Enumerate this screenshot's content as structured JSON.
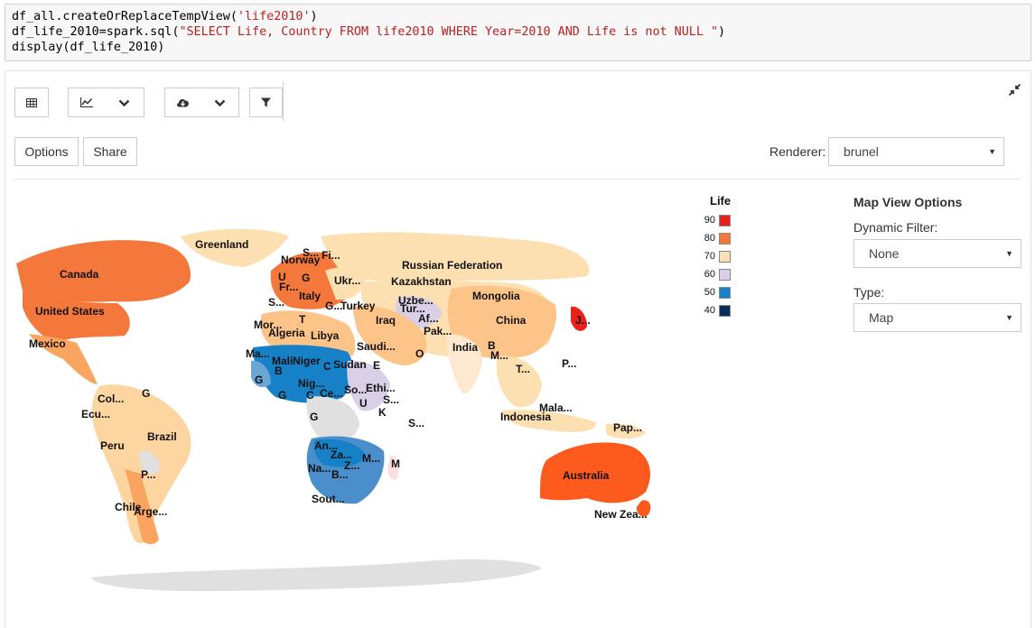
{
  "code": {
    "line1_a": "df_all.createOrReplaceTempView(",
    "line1_str": "'life2010'",
    "line1_b": ")",
    "line2_a": "df_life_2010=spark.sql(",
    "line2_str": "\"SELECT Life, Country FROM life2010 WHERE Year=2010 AND Life is not NULL \"",
    "line2_b": ")",
    "line3": "display(df_life_2010)"
  },
  "toolbar": {
    "table_icon": "table-icon",
    "chart_icon": "line-chart-icon",
    "download_icon": "cloud-download-icon",
    "filter_icon": "filter-icon",
    "collapse_icon": "collapse-arrows-icon"
  },
  "buttons": {
    "options": "Options",
    "share": "Share"
  },
  "renderer": {
    "label": "Renderer:",
    "value": "brunel"
  },
  "legend": {
    "title": "Life",
    "entries": [
      {
        "label": "90",
        "color": "#e8211b"
      },
      {
        "label": "80",
        "color": "#f4773b"
      },
      {
        "label": "70",
        "color": "#fde0b1"
      },
      {
        "label": "60",
        "color": "#d9cfe6"
      },
      {
        "label": "50",
        "color": "#1681c7"
      },
      {
        "label": "40",
        "color": "#0b2d5b"
      }
    ]
  },
  "map_options": {
    "title": "Map View Options",
    "filter_label": "Dynamic Filter:",
    "filter_value": "None",
    "type_label": "Type:",
    "type_value": "Map"
  },
  "map_labels": {
    "greenland": "Greenland",
    "canada": "Canada",
    "usa": "United States",
    "mexico": "Mexico",
    "colombia": "Col...",
    "ecuador": "Ecu...",
    "peru": "Peru",
    "brazil": "Brazil",
    "paraguay": "P...",
    "chile": "Chile",
    "argentina": "Arge...",
    "guyana": "G",
    "norway": "Norway",
    "sweden": "S...",
    "finland": "Fi...",
    "uk": "U",
    "germany": "G",
    "france": "Fr...",
    "spain": "S...",
    "italy": "Italy",
    "greece": "G...",
    "ukraine": "Ukr...",
    "turkey": "Turkey",
    "russia": "Russian Federation",
    "kazakhstan": "Kazakhstan",
    "uzbekistan": "Uzbe...",
    "turkmenistan": "Tur...",
    "afghanistan": "Af...",
    "pakistan": "Pak...",
    "iraq": "Iraq",
    "mongolia": "Mongolia",
    "china": "China",
    "japan": "J...",
    "india": "India",
    "bangladesh": "B",
    "myanmar": "M...",
    "thailand": "T...",
    "philippines": "P...",
    "malaysia": "Mala...",
    "indonesia": "Indonesia",
    "png": "Pap...",
    "australia": "Australia",
    "nz": "New Zea...",
    "morocco": "Mor...",
    "algeria": "Algeria",
    "tunisia": "T",
    "libya": "Libya",
    "egypt": "E",
    "sudan": "Sudan",
    "chad": "C",
    "niger": "Niger",
    "mali": "Mali",
    "mauritania": "Ma...",
    "burkina": "B",
    "guinea": "G",
    "ghana": "G",
    "nigeria": "Nig...",
    "cameroon": "C",
    "car": "Ce...",
    "somalia_n": "So...",
    "ethiopia": "Ethi...",
    "somalia": "S...",
    "uganda": "U",
    "kenya": "K",
    "gabon": "G",
    "saudi": "Saudi...",
    "oman": "O",
    "seychelles": "S...",
    "angola": "An...",
    "zambia": "Za...",
    "mozambique": "M...",
    "zimbabwe": "Z...",
    "namibia": "Na...",
    "botswana": "B...",
    "south_africa": "Sout...",
    "madagascar": "M"
  }
}
